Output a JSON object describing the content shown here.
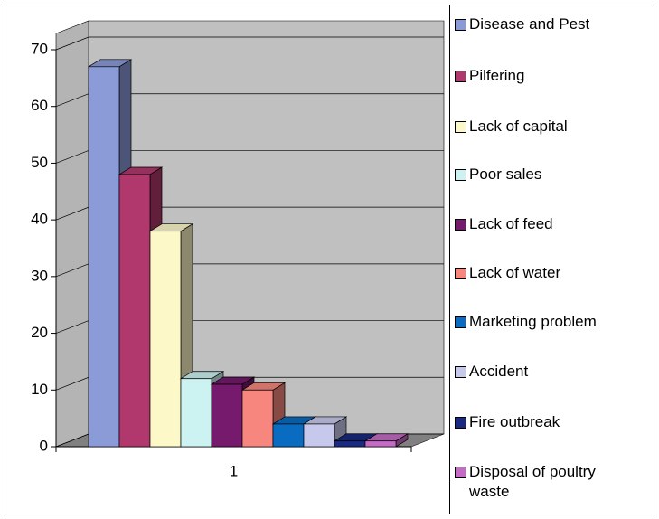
{
  "chart_data": {
    "type": "bar3d",
    "categories": [
      "1"
    ],
    "series": [
      {
        "name": "Disease and Pest",
        "color": "#8b9bd8",
        "values": [
          67
        ]
      },
      {
        "name": "Pilfering",
        "color": "#b0386c",
        "values": [
          48
        ]
      },
      {
        "name": "Lack of capital",
        "color": "#fdf8c8",
        "values": [
          38
        ]
      },
      {
        "name": "Poor sales",
        "color": "#cdf2f2",
        "values": [
          12
        ]
      },
      {
        "name": "Lack of feed",
        "color": "#751a6c",
        "values": [
          11
        ]
      },
      {
        "name": "Lack of water",
        "color": "#f7877e",
        "values": [
          10
        ]
      },
      {
        "name": "Marketing problem",
        "color": "#0a6cc0",
        "values": [
          4
        ]
      },
      {
        "name": "Accident",
        "color": "#c7c9ec",
        "values": [
          4
        ]
      },
      {
        "name": "Fire outbreak",
        "color": "#1a2a80",
        "values": [
          1
        ]
      },
      {
        "name": "Disposal of poultry waste",
        "color": "#c46cc4",
        "values": [
          1
        ]
      }
    ],
    "ylim": [
      0,
      70
    ],
    "yticks": [
      0,
      10,
      20,
      30,
      40,
      50,
      60,
      70
    ],
    "grid": true
  }
}
